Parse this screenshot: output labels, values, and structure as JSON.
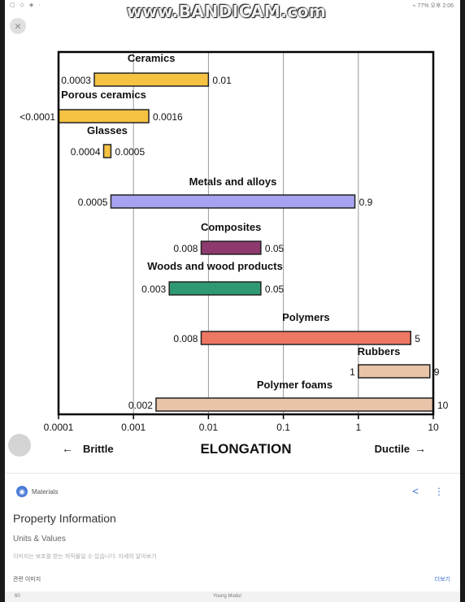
{
  "watermark": "www.BANDICAM.com",
  "status_bar": {
    "left_icons": "▢ ◇ ◈ ·",
    "right_text": "⌁ 77% 오후 2:06"
  },
  "close_icon": "×",
  "chart_data": {
    "type": "bar",
    "scale": "log",
    "xlim": [
      0.0001,
      10
    ],
    "x_ticks": [
      {
        "value": 0.0001,
        "label": "0.0001"
      },
      {
        "value": 0.001,
        "label": "0.001"
      },
      {
        "value": 0.01,
        "label": "0.01"
      },
      {
        "value": 0.1,
        "label": "0.1"
      },
      {
        "value": 1,
        "label": "1"
      },
      {
        "value": 10,
        "label": "10"
      }
    ],
    "xlabel": "ELONGATION",
    "left_label": "Brittle",
    "right_label": "Ductile",
    "grid": true,
    "bars": [
      {
        "name": "Ceramics",
        "min": 0.0003,
        "max": 0.01,
        "min_label": "0.0003",
        "max_label": "0.01",
        "color": "#f5c242"
      },
      {
        "name": "Porous ceramics",
        "min": 0.0001,
        "max": 0.0016,
        "min_label": "<0.0001",
        "max_label": "0.0016",
        "color": "#f5c242"
      },
      {
        "name": "Glasses",
        "min": 0.0004,
        "max": 0.0005,
        "min_label": "0.0004",
        "max_label": "0.0005",
        "color": "#f5c242"
      },
      {
        "name": "Metals and alloys",
        "min": 0.0005,
        "max": 0.9,
        "min_label": "0.0005",
        "max_label": "0.9",
        "color": "#a7a3f0"
      },
      {
        "name": "Composites",
        "min": 0.008,
        "max": 0.05,
        "min_label": "0.008",
        "max_label": "0.05",
        "color": "#8e3a6e"
      },
      {
        "name": "Woods and wood products",
        "min": 0.003,
        "max": 0.05,
        "min_label": "0.003",
        "max_label": "0.05",
        "color": "#2f9a72"
      },
      {
        "name": "Polymers",
        "min": 0.008,
        "max": 5,
        "min_label": "0.008",
        "max_label": "5",
        "color": "#ee7763"
      },
      {
        "name": "Rubbers",
        "min": 1,
        "max": 9,
        "min_label": "1",
        "max_label": "9",
        "color": "#e8c4a8"
      },
      {
        "name": "Polymer foams",
        "min": 0.002,
        "max": 10,
        "min_label": "0.002",
        "max_label": "10",
        "color": "#e8c4a8"
      }
    ]
  },
  "panel": {
    "source_name": "Materials",
    "title": "Property Information",
    "units": "Units & Values",
    "disclaimer": "이미지는 보호를 받는 저작물일 수 있습니다. 자세히 알아보기",
    "related_label": "관련 이미지",
    "more_label": "더보기",
    "bottom_left": "60",
    "bottom_mid": "Young Modul"
  },
  "colors": {
    "accent": "#3d6fd0",
    "frame": "#000000",
    "grid": "#999999"
  }
}
